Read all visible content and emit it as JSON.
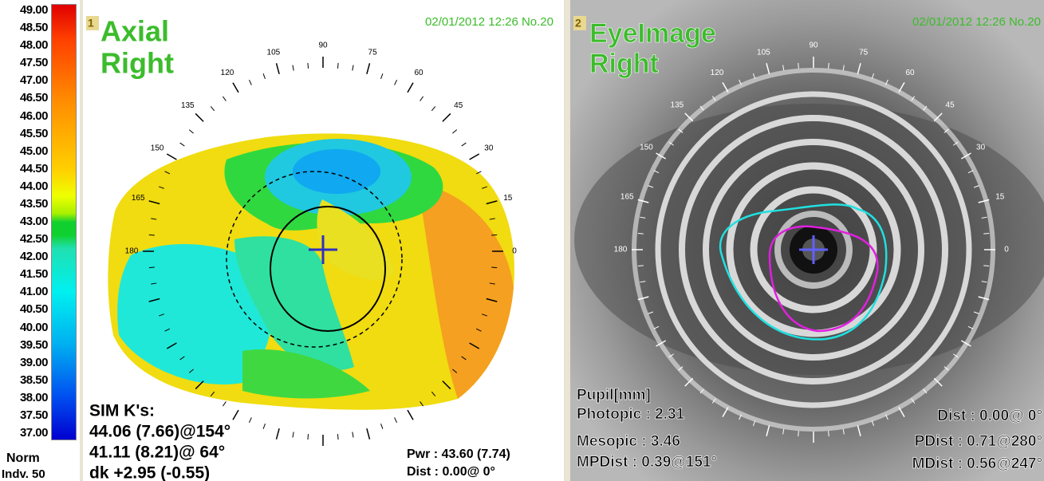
{
  "scale": {
    "labels": [
      "49.00",
      "48.50",
      "48.00",
      "47.50",
      "47.00",
      "46.50",
      "46.00",
      "45.50",
      "45.00",
      "44.50",
      "44.00",
      "43.50",
      "43.00",
      "42.50",
      "42.00",
      "41.50",
      "41.00",
      "40.50",
      "40.00",
      "39.50",
      "39.00",
      "38.50",
      "38.00",
      "37.50",
      "37.00"
    ],
    "norm": "Norm",
    "indv": "Indv. 50"
  },
  "panels": [
    {
      "number": "1",
      "title": "Axial",
      "eye": "Right",
      "timestamp": "02/01/2012 12:26 No.20",
      "angles": [
        "90",
        "105",
        "120",
        "135",
        "150",
        "165",
        "180",
        "75",
        "60",
        "45",
        "30",
        "15",
        "0"
      ],
      "sim_k": {
        "heading": "SIM K's:",
        "lines": [
          "44.06 (7.66)@154°",
          "41.11 (8.21)@ 64°",
          "dk +2.95 (-0.55)"
        ]
      },
      "readouts": [
        "Pwr :  43.60 (7.74)",
        "Dist :  0.00@  0°"
      ]
    },
    {
      "number": "2",
      "title": "EyeImage",
      "eye": "Right",
      "timestamp": "02/01/2012 12:26 No.20",
      "angles": [
        "90",
        "105",
        "120",
        "135",
        "150",
        "165",
        "180",
        "75",
        "60",
        "45",
        "30",
        "15",
        "0"
      ],
      "pupil": {
        "heading": "Pupil[mm]",
        "lines": [
          "Photopic : 2.31",
          "Mesopic : 3.46",
          "MPDist : 0.39@151°"
        ]
      },
      "readouts": [
        "Dist :  0.00@  0°",
        "PDist :  0.71@280°",
        "MDist :  0.56@247°"
      ]
    }
  ]
}
